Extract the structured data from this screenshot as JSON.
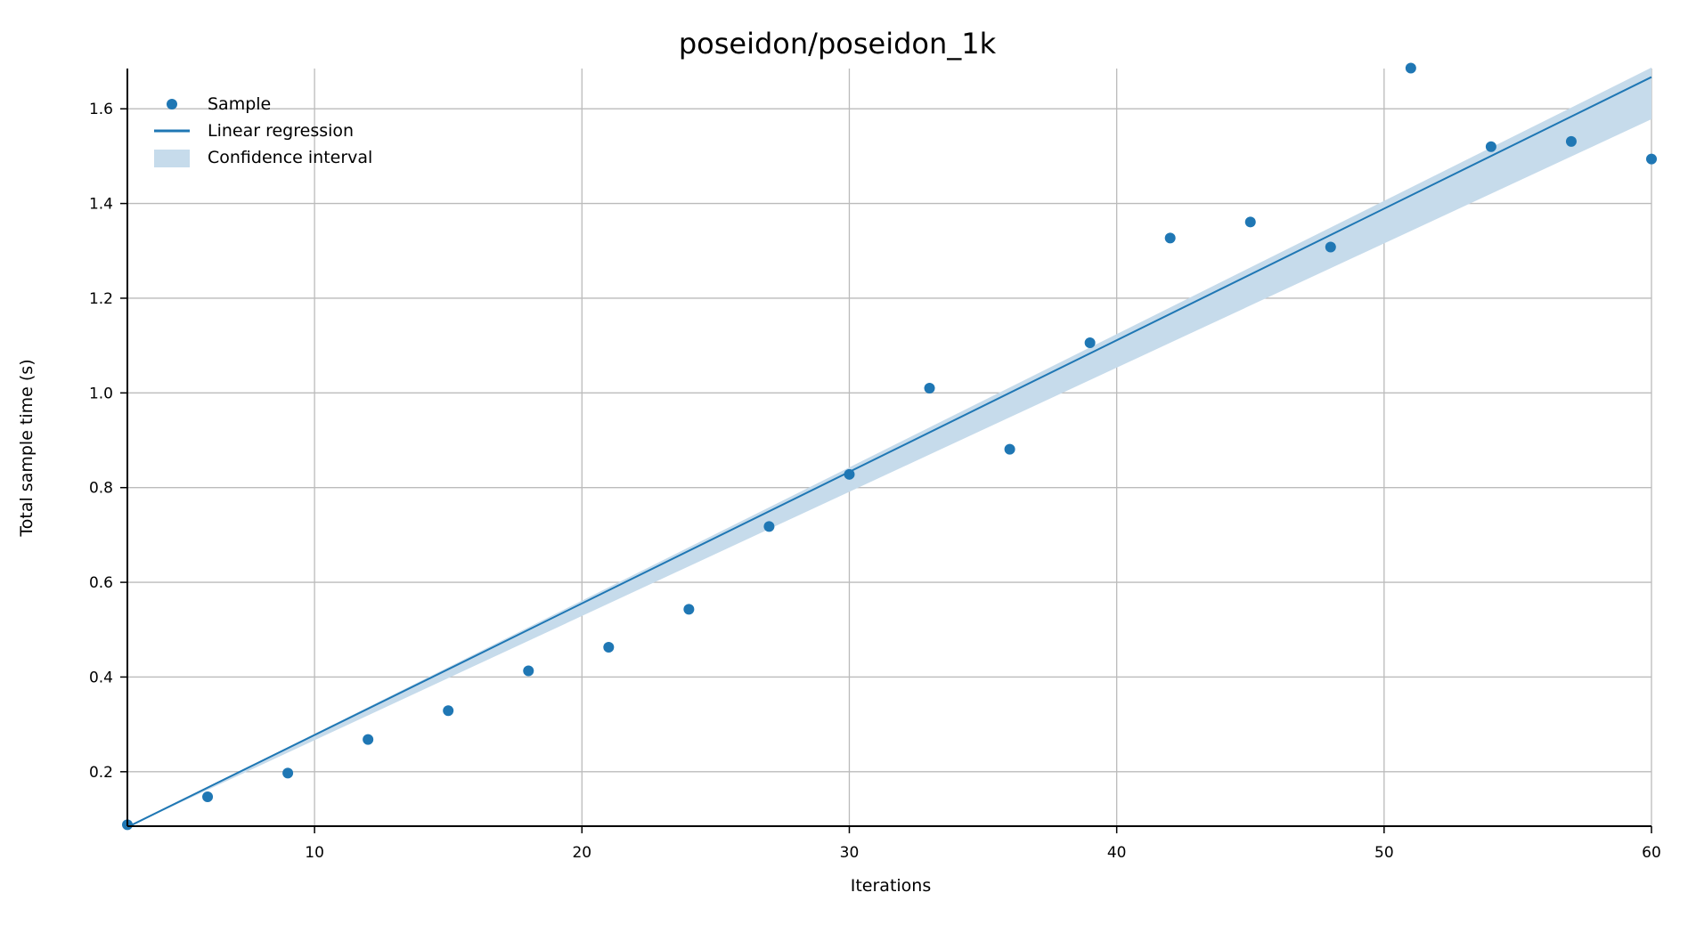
{
  "chart_data": {
    "type": "scatter",
    "title": "poseidon/poseidon_1k",
    "xlabel": "Iterations",
    "ylabel": "Total sample time (s)",
    "xlim": [
      3,
      60
    ],
    "ylim": [
      0.085,
      1.685
    ],
    "xticks": [
      10,
      20,
      30,
      40,
      50,
      60
    ],
    "yticks": [
      0.2,
      0.4,
      0.6,
      0.8,
      1.0,
      1.2,
      1.4,
      1.6
    ],
    "xtick_labels": [
      "10",
      "20",
      "30",
      "40",
      "50",
      "60"
    ],
    "ytick_labels": [
      "0.2",
      "0.4",
      "0.6",
      "0.8",
      "1.0",
      "1.2",
      "1.4",
      "1.6"
    ],
    "grid": true,
    "legend_position": "top-left",
    "color": "#1f77b4",
    "band_color": "#c6dbeb",
    "samples": {
      "name": "Sample",
      "x": [
        3,
        6,
        9,
        12,
        15,
        18,
        21,
        24,
        27,
        30,
        33,
        36,
        39,
        42,
        45,
        48,
        51,
        54,
        57,
        60
      ],
      "y": [
        0.088,
        0.147,
        0.197,
        0.268,
        0.329,
        0.413,
        0.463,
        0.543,
        0.718,
        0.828,
        1.01,
        0.881,
        1.106,
        1.327,
        1.361,
        1.308,
        1.686,
        1.52,
        1.531,
        1.494
      ]
    },
    "regression": {
      "name": "Linear regression",
      "x": [
        3,
        60
      ],
      "y": [
        0.083,
        1.667
      ]
    },
    "confidence_interval": {
      "name": "Confidence interval",
      "x": [
        3,
        60
      ],
      "lower": [
        0.083,
        1.578
      ],
      "upper": [
        0.083,
        1.687
      ]
    },
    "legend": [
      "Sample",
      "Linear regression",
      "Confidence interval"
    ]
  }
}
